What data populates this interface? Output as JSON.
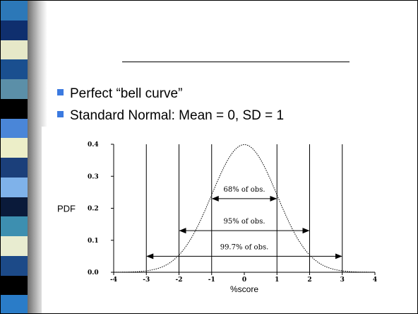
{
  "slide": {
    "bullets": [
      "Perfect “bell curve”",
      "Standard Normal: Mean = 0, SD = 1"
    ],
    "bullet_color": "#3b7ae0"
  },
  "chart_data": {
    "type": "line",
    "title": "",
    "xlabel": "%score",
    "ylabel": "PDF",
    "xlim": [
      -4,
      4
    ],
    "ylim": [
      0,
      0.4
    ],
    "x_ticks": [
      "-4",
      "-3",
      "-2",
      "-1",
      "0",
      "1",
      "2",
      "3",
      "4"
    ],
    "y_ticks": [
      "0.0",
      "0.1",
      "0.2",
      "0.3",
      "0.4"
    ],
    "curve": "standard normal density, mean 0, sd 1",
    "vertical_lines": [
      -3,
      -2,
      -1,
      1,
      2,
      3
    ],
    "intervals": [
      {
        "from": -1,
        "to": 1,
        "label": "68% of obs.",
        "y": 0.23
      },
      {
        "from": -2,
        "to": 2,
        "label": "95% of obs.",
        "y": 0.13
      },
      {
        "from": -3,
        "to": 3,
        "label": "99.7% of obs.",
        "y": 0.05
      }
    ]
  }
}
